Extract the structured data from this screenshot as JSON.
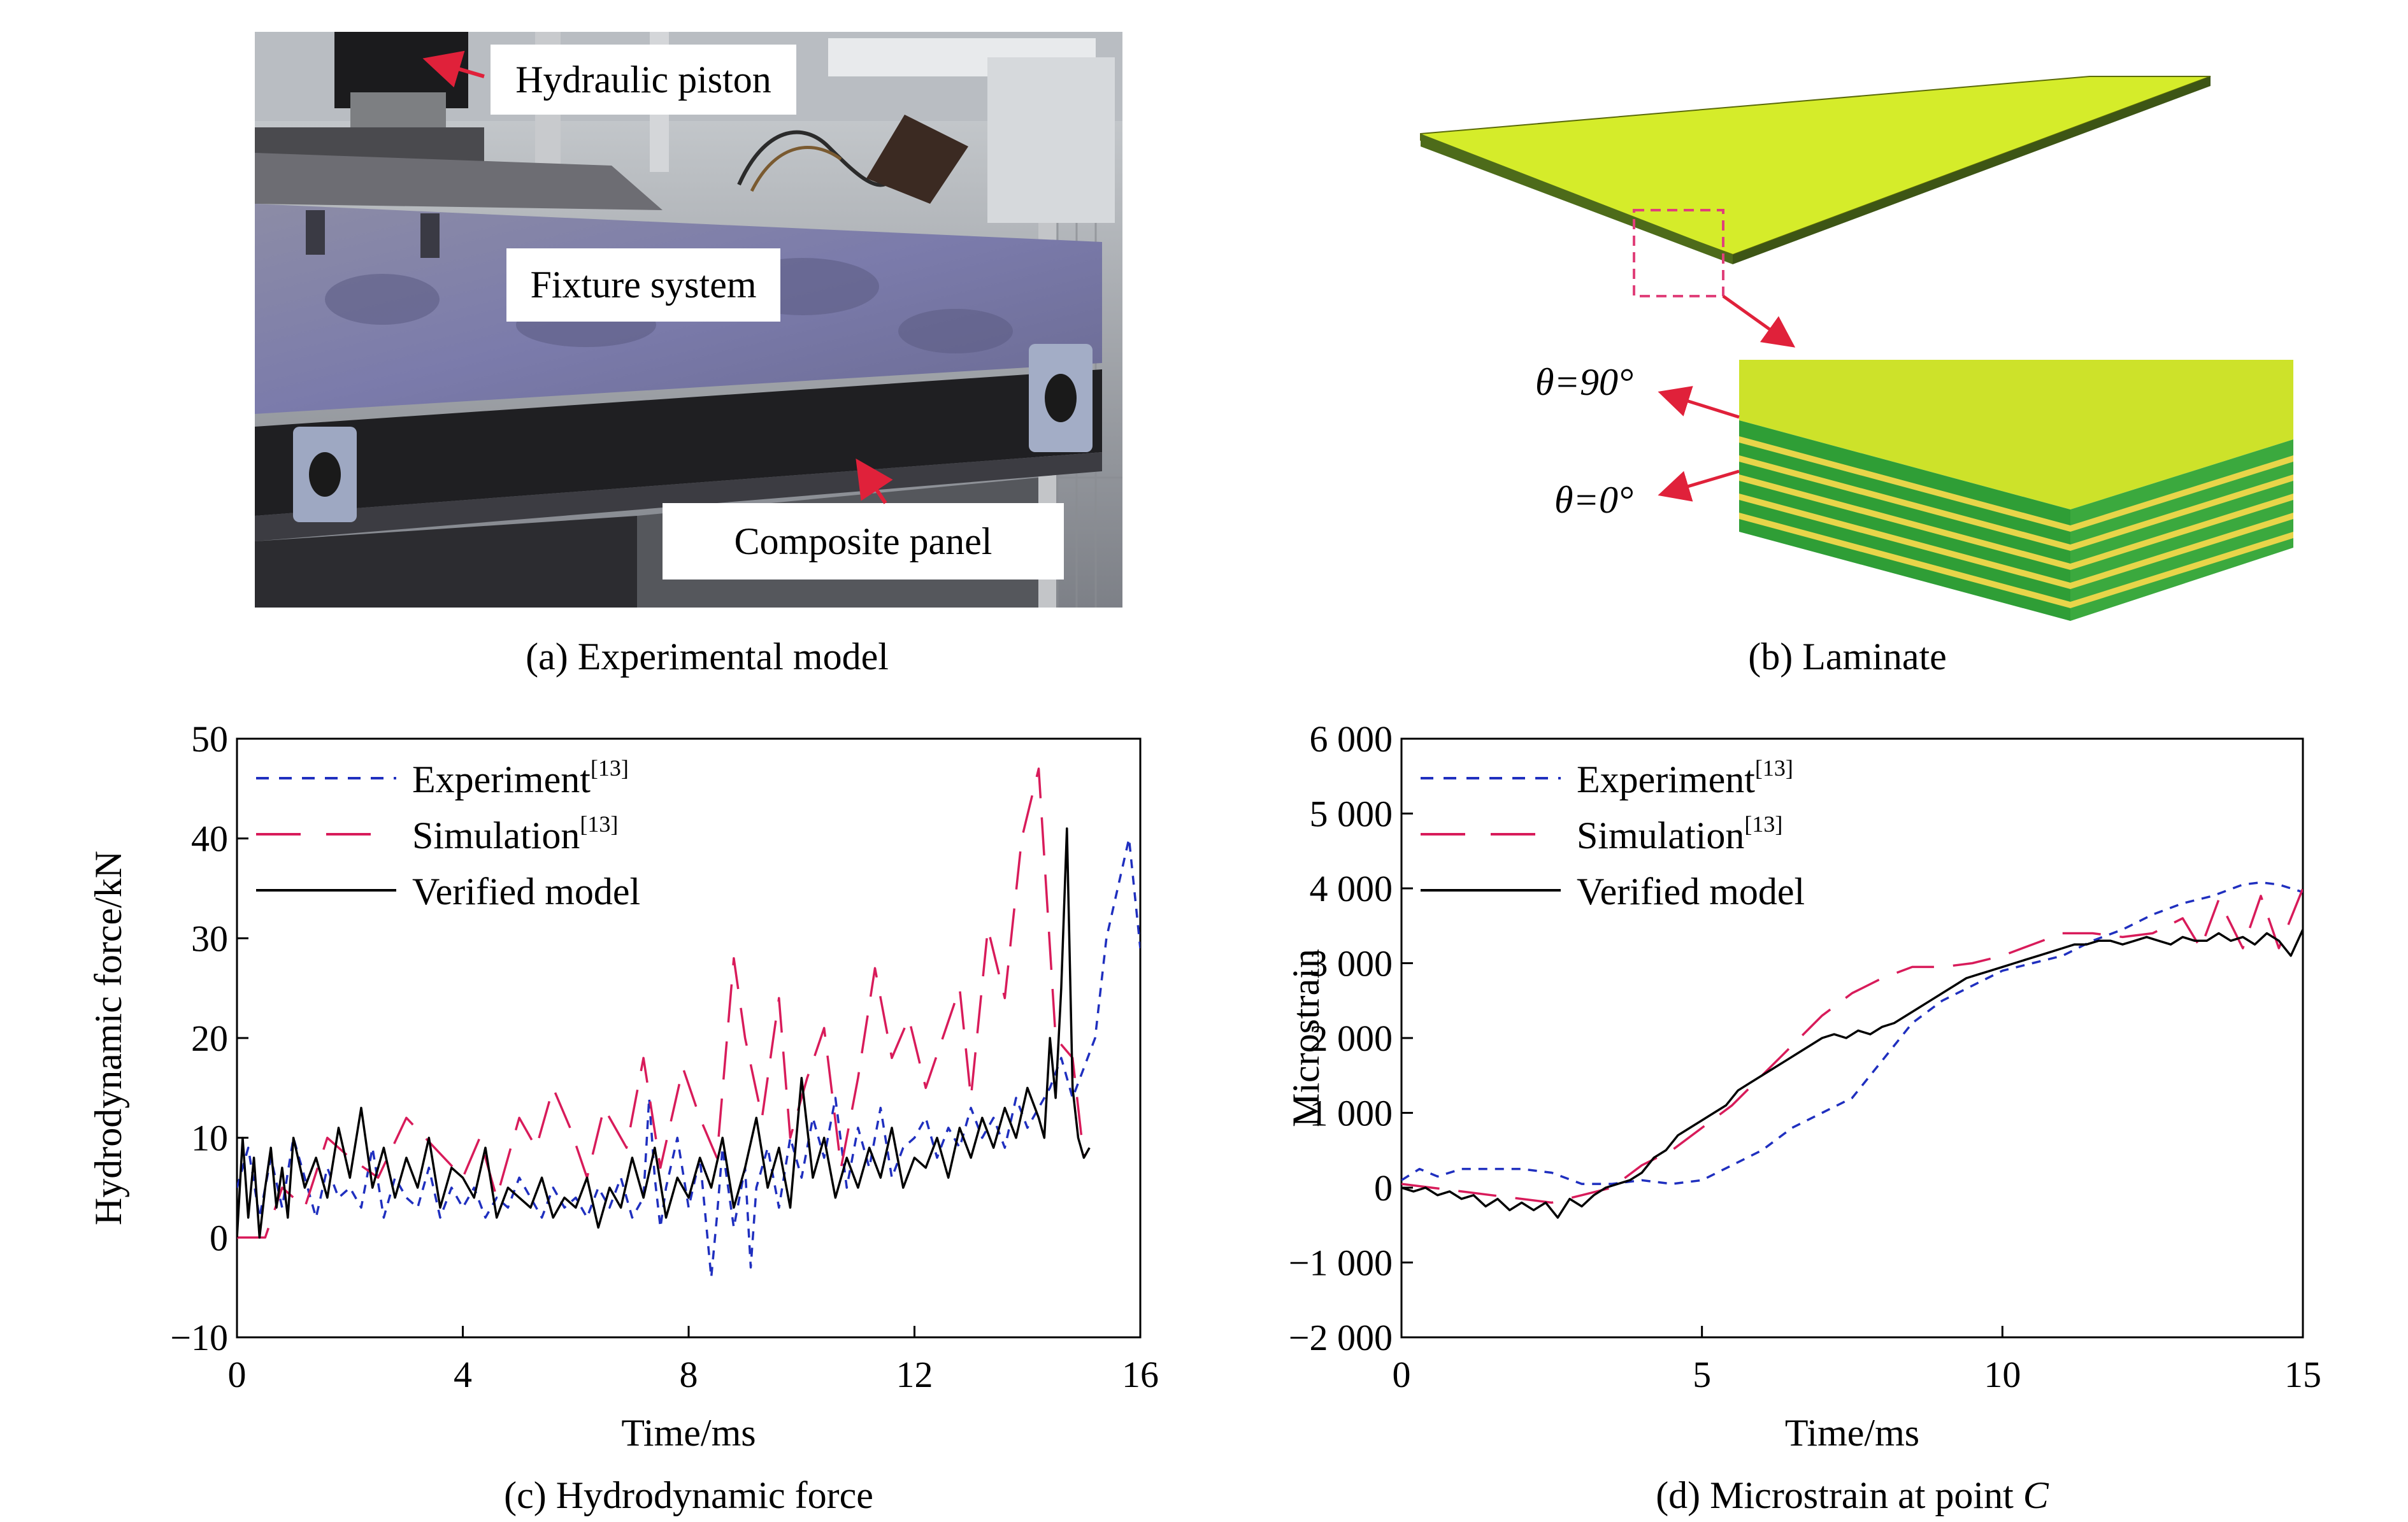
{
  "panel_a": {
    "caption": "(a) Experimental model",
    "labels": {
      "piston": "Hydraulic piston",
      "fixture": "Fixture system",
      "panel": "Composite panel"
    }
  },
  "panel_b": {
    "caption": "(b) Laminate",
    "angle_90": "θ=90°",
    "angle_0": "θ=0°"
  },
  "chart_data": [
    {
      "type": "line",
      "caption": "(c) Hydrodynamic force",
      "xlabel": "Time/ms",
      "ylabel": "Hydrodynamic force/kN",
      "xlim": [
        0,
        16
      ],
      "ylim": [
        -10,
        50
      ],
      "xticks": [
        "0",
        "4",
        "8",
        "12",
        "16"
      ],
      "xtick_values": [
        0,
        4,
        8,
        12,
        16
      ],
      "yticks": [
        "50",
        "40",
        "30",
        "20",
        "10",
        "0",
        "−10"
      ],
      "ytick_values": [
        50,
        40,
        30,
        20,
        10,
        0,
        -10
      ],
      "legend_position": "top-left",
      "series": [
        {
          "name": "Experiment",
          "name_sup": "[13]",
          "color": "#1f2fbf",
          "style": "dotted",
          "x": [
            0,
            0.2,
            0.4,
            0.6,
            0.8,
            1.0,
            1.2,
            1.4,
            1.6,
            1.8,
            2.0,
            2.2,
            2.4,
            2.6,
            2.8,
            3.0,
            3.2,
            3.4,
            3.6,
            3.8,
            4.0,
            4.2,
            4.4,
            4.6,
            4.8,
            5.0,
            5.2,
            5.4,
            5.6,
            5.8,
            6.0,
            6.2,
            6.4,
            6.6,
            6.8,
            7.0,
            7.2,
            7.3,
            7.4,
            7.5,
            7.6,
            7.8,
            8.0,
            8.2,
            8.4,
            8.5,
            8.6,
            8.8,
            9.0,
            9.1,
            9.2,
            9.4,
            9.6,
            9.8,
            10.0,
            10.2,
            10.4,
            10.6,
            10.8,
            11.0,
            11.2,
            11.4,
            11.6,
            11.8,
            12.0,
            12.2,
            12.4,
            12.6,
            12.8,
            13.0,
            13.2,
            13.4,
            13.6,
            13.8,
            14.0,
            14.2,
            14.4,
            14.6,
            14.8,
            15.0,
            15.2,
            15.4,
            15.6,
            15.8,
            16.0
          ],
          "y": [
            5,
            9,
            2,
            8,
            3,
            10,
            6,
            2,
            7,
            4,
            5,
            3,
            9,
            2,
            6,
            4,
            3,
            7,
            2,
            5,
            3,
            5,
            2,
            4,
            3,
            6,
            4,
            2,
            5,
            3,
            4,
            2,
            5,
            3,
            6,
            2,
            4,
            14,
            6,
            1,
            5,
            10,
            3,
            8,
            -4,
            2,
            9,
            1,
            7,
            -3,
            5,
            9,
            3,
            10,
            6,
            12,
            8,
            14,
            5,
            11,
            7,
            13,
            6,
            9,
            10,
            12,
            8,
            11,
            9,
            13,
            10,
            12,
            9,
            14,
            11,
            13,
            15,
            18,
            14,
            17,
            20,
            30,
            35,
            40,
            29
          ]
        },
        {
          "name": "Simulation",
          "name_sup": "[13]",
          "color": "#d81b5a",
          "style": "dashed",
          "x": [
            0,
            0.5,
            0.8,
            1.2,
            1.6,
            2.0,
            2.5,
            3.0,
            3.5,
            4.0,
            4.3,
            4.6,
            5.0,
            5.3,
            5.6,
            5.9,
            6.2,
            6.5,
            6.9,
            7.2,
            7.5,
            7.9,
            8.2,
            8.5,
            8.8,
            9.0,
            9.3,
            9.6,
            9.8,
            10.1,
            10.4,
            10.7,
            11.0,
            11.3,
            11.6,
            11.9,
            12.2,
            12.5,
            12.8,
            13.0,
            13.3,
            13.6,
            13.9,
            14.2,
            14.5,
            14.8,
            15.0
          ],
          "y": [
            0,
            0,
            5,
            3,
            10,
            8,
            6,
            12,
            9,
            6,
            10,
            4,
            12,
            9,
            15,
            11,
            6,
            13,
            9,
            18,
            7,
            17,
            12,
            8,
            28,
            20,
            12,
            24,
            10,
            16,
            21,
            7,
            16,
            27,
            18,
            22,
            15,
            20,
            25,
            14,
            31,
            24,
            40,
            47,
            20,
            18,
            8
          ]
        },
        {
          "name": "Verified model",
          "color": "#000000",
          "style": "solid",
          "x": [
            0,
            0.1,
            0.2,
            0.3,
            0.4,
            0.5,
            0.6,
            0.7,
            0.8,
            0.9,
            1.0,
            1.2,
            1.4,
            1.6,
            1.8,
            2.0,
            2.2,
            2.4,
            2.6,
            2.8,
            3.0,
            3.2,
            3.4,
            3.6,
            3.8,
            4.0,
            4.2,
            4.4,
            4.6,
            4.8,
            5.0,
            5.2,
            5.4,
            5.6,
            5.8,
            6.0,
            6.2,
            6.4,
            6.6,
            6.8,
            7.0,
            7.2,
            7.4,
            7.6,
            7.8,
            8.0,
            8.2,
            8.4,
            8.6,
            8.8,
            9.0,
            9.2,
            9.4,
            9.6,
            9.8,
            10.0,
            10.2,
            10.4,
            10.6,
            10.8,
            11.0,
            11.2,
            11.4,
            11.6,
            11.8,
            12.0,
            12.2,
            12.4,
            12.6,
            12.8,
            13.0,
            13.2,
            13.4,
            13.6,
            13.8,
            14.0,
            14.2,
            14.3,
            14.4,
            14.5,
            14.6,
            14.7,
            14.8,
            14.9,
            15.0,
            15.1
          ],
          "y": [
            0,
            10,
            2,
            8,
            0,
            5,
            9,
            3,
            7,
            2,
            10,
            5,
            8,
            4,
            11,
            6,
            13,
            5,
            9,
            4,
            8,
            5,
            10,
            3,
            7,
            6,
            4,
            9,
            2,
            5,
            4,
            3,
            6,
            2,
            4,
            3,
            6,
            1,
            5,
            3,
            8,
            4,
            9,
            2,
            6,
            4,
            8,
            5,
            10,
            3,
            7,
            12,
            5,
            9,
            3,
            16,
            6,
            10,
            4,
            8,
            5,
            9,
            6,
            11,
            5,
            8,
            7,
            10,
            6,
            11,
            8,
            12,
            9,
            13,
            10,
            15,
            12,
            10,
            20,
            14,
            25,
            41,
            15,
            10,
            8,
            9
          ]
        }
      ]
    },
    {
      "type": "line",
      "caption": "(d) Microstrain at point ",
      "caption_italic": "C",
      "xlabel": "Time/ms",
      "ylabel": "Microstrain",
      "xlim": [
        0,
        15
      ],
      "ylim": [
        -2000,
        6000
      ],
      "xticks": [
        "0",
        "5",
        "10",
        "15"
      ],
      "xtick_values": [
        0,
        5,
        10,
        15
      ],
      "yticks": [
        "6 000",
        "5 000",
        "4 000",
        "3 000",
        "2 000",
        "1 000",
        "0",
        "−1 000",
        "−2 000"
      ],
      "ytick_values": [
        6000,
        5000,
        4000,
        3000,
        2000,
        1000,
        0,
        -1000,
        -2000
      ],
      "legend_position": "top-left",
      "series": [
        {
          "name": "Experiment",
          "name_sup": "[13]",
          "color": "#1f2fbf",
          "style": "dotted",
          "x": [
            0,
            0.3,
            0.6,
            1.0,
            1.5,
            2.0,
            2.5,
            3.0,
            3.5,
            4.0,
            4.5,
            5.0,
            5.5,
            6.0,
            6.5,
            7.0,
            7.5,
            8.0,
            8.5,
            9.0,
            9.5,
            10.0,
            10.5,
            11.0,
            11.5,
            12.0,
            12.5,
            13.0,
            13.5,
            14.0,
            14.3,
            14.6,
            15.0
          ],
          "y": [
            100,
            250,
            150,
            250,
            250,
            250,
            200,
            50,
            50,
            100,
            50,
            100,
            300,
            500,
            800,
            1000,
            1200,
            1700,
            2200,
            2500,
            2700,
            2900,
            3000,
            3100,
            3300,
            3450,
            3650,
            3800,
            3900,
            4050,
            4080,
            4050,
            3950
          ]
        },
        {
          "name": "Simulation",
          "name_sup": "[13]",
          "color": "#d81b5a",
          "style": "dashed",
          "x": [
            0,
            0.5,
            1.0,
            1.5,
            2.0,
            2.5,
            3.0,
            3.5,
            4.0,
            4.5,
            5.0,
            5.5,
            6.0,
            6.5,
            7.0,
            7.5,
            8.0,
            8.5,
            9.0,
            9.5,
            10.0,
            10.5,
            11.0,
            11.5,
            12.0,
            12.5,
            13.0,
            13.3,
            13.6,
            14.0,
            14.3,
            14.6,
            15.0
          ],
          "y": [
            50,
            0,
            -50,
            -100,
            -150,
            -200,
            -100,
            0,
            300,
            500,
            800,
            1100,
            1500,
            1900,
            2300,
            2600,
            2800,
            2950,
            2950,
            3000,
            3100,
            3250,
            3400,
            3400,
            3350,
            3400,
            3600,
            3200,
            3850,
            3200,
            3900,
            3200,
            4000
          ]
        },
        {
          "name": "Verified model",
          "color": "#000000",
          "style": "solid",
          "x": [
            0,
            0.2,
            0.4,
            0.6,
            0.8,
            1.0,
            1.2,
            1.4,
            1.6,
            1.8,
            2.0,
            2.2,
            2.4,
            2.6,
            2.8,
            3.0,
            3.2,
            3.4,
            3.6,
            3.8,
            4.0,
            4.2,
            4.4,
            4.6,
            4.8,
            5.0,
            5.2,
            5.4,
            5.6,
            5.8,
            6.0,
            6.2,
            6.4,
            6.6,
            6.8,
            7.0,
            7.2,
            7.4,
            7.6,
            7.8,
            8.0,
            8.2,
            8.4,
            8.6,
            8.8,
            9.0,
            9.2,
            9.4,
            9.6,
            9.8,
            10.0,
            10.2,
            10.4,
            10.6,
            10.8,
            11.0,
            11.2,
            11.4,
            11.6,
            11.8,
            12.0,
            12.2,
            12.4,
            12.6,
            12.8,
            13.0,
            13.2,
            13.4,
            13.6,
            13.8,
            14.0,
            14.2,
            14.4,
            14.6,
            14.8,
            15.0
          ],
          "y": [
            0,
            -50,
            0,
            -100,
            -50,
            -150,
            -100,
            -250,
            -150,
            -300,
            -200,
            -300,
            -200,
            -400,
            -150,
            -250,
            -100,
            0,
            50,
            100,
            200,
            400,
            500,
            700,
            800,
            900,
            1000,
            1100,
            1300,
            1400,
            1500,
            1600,
            1700,
            1800,
            1900,
            2000,
            2050,
            2000,
            2100,
            2050,
            2150,
            2200,
            2300,
            2400,
            2500,
            2600,
            2700,
            2800,
            2850,
            2900,
            2950,
            3000,
            3050,
            3100,
            3150,
            3200,
            3250,
            3250,
            3300,
            3300,
            3250,
            3300,
            3350,
            3300,
            3250,
            3350,
            3300,
            3300,
            3400,
            3300,
            3350,
            3250,
            3400,
            3300,
            3100,
            3450
          ]
        }
      ]
    }
  ]
}
